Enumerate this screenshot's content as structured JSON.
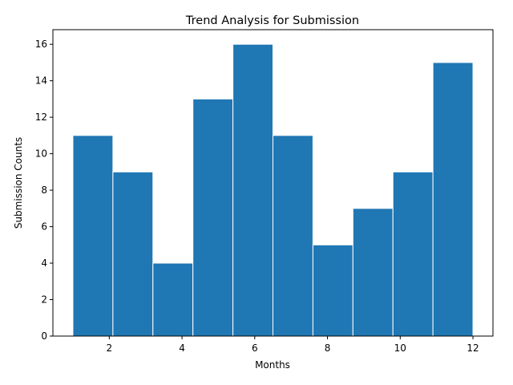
{
  "chart_data": {
    "type": "bar",
    "title": "Trend Analysis for Submission",
    "xlabel": "Months",
    "ylabel": "Submission Counts",
    "bin_edges": [
      1.0,
      2.1,
      3.2,
      4.3,
      5.4,
      6.5,
      7.6,
      8.7,
      9.8,
      10.9,
      12.0
    ],
    "values": [
      11,
      9,
      4,
      13,
      16,
      11,
      5,
      7,
      9,
      15
    ],
    "xlim": [
      0.45,
      12.55
    ],
    "ylim": [
      0,
      16.8
    ],
    "xticks": [
      2,
      4,
      6,
      8,
      10,
      12
    ],
    "yticks": [
      0,
      2,
      4,
      6,
      8,
      10,
      12,
      14,
      16
    ],
    "bar_color": "#1f77b4",
    "edge_color": "#ffffff",
    "grid": false,
    "legend": "none"
  }
}
